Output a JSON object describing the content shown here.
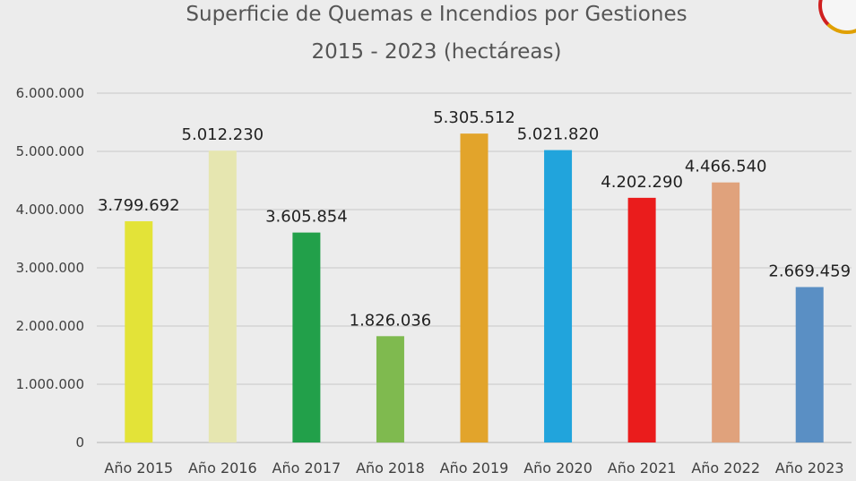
{
  "chart_data": {
    "type": "bar",
    "title": [
      "Superficie de Quemas e Incendios por Gestiones",
      "2015 - 2023 (hectáreas)"
    ],
    "xlabel": "",
    "ylabel": "",
    "ylim": [
      0,
      6000000
    ],
    "yticks": [
      0,
      1000000,
      2000000,
      3000000,
      4000000,
      5000000,
      6000000
    ],
    "ytick_labels": [
      "0",
      "1.000.000",
      "2.000.000",
      "3.000.000",
      "4.000.000",
      "5.000.000",
      "6.000.000"
    ],
    "grid": true,
    "legend": "none",
    "categories": [
      "Año 2015",
      "Año 2016",
      "Año 2017",
      "Año 2018",
      "Año 2019",
      "Año 2020",
      "Año 2021",
      "Año 2022",
      "Año 2023"
    ],
    "values": [
      3799692,
      5012230,
      3605854,
      1826036,
      5305512,
      5021820,
      4202290,
      4466540,
      2669459
    ],
    "value_labels": [
      "3.799.692",
      "5.012.230",
      "3.605.854",
      "1.826.036",
      "5.305.512",
      "5.021.820",
      "4.202.290",
      "4.466.540",
      "2.669.459"
    ],
    "colors": [
      "#e3e338",
      "#e6e6b0",
      "#22a04a",
      "#7fba4f",
      "#e2a42b",
      "#21a4dc",
      "#ea1c1c",
      "#e0a27c",
      "#5a8fc4"
    ]
  }
}
